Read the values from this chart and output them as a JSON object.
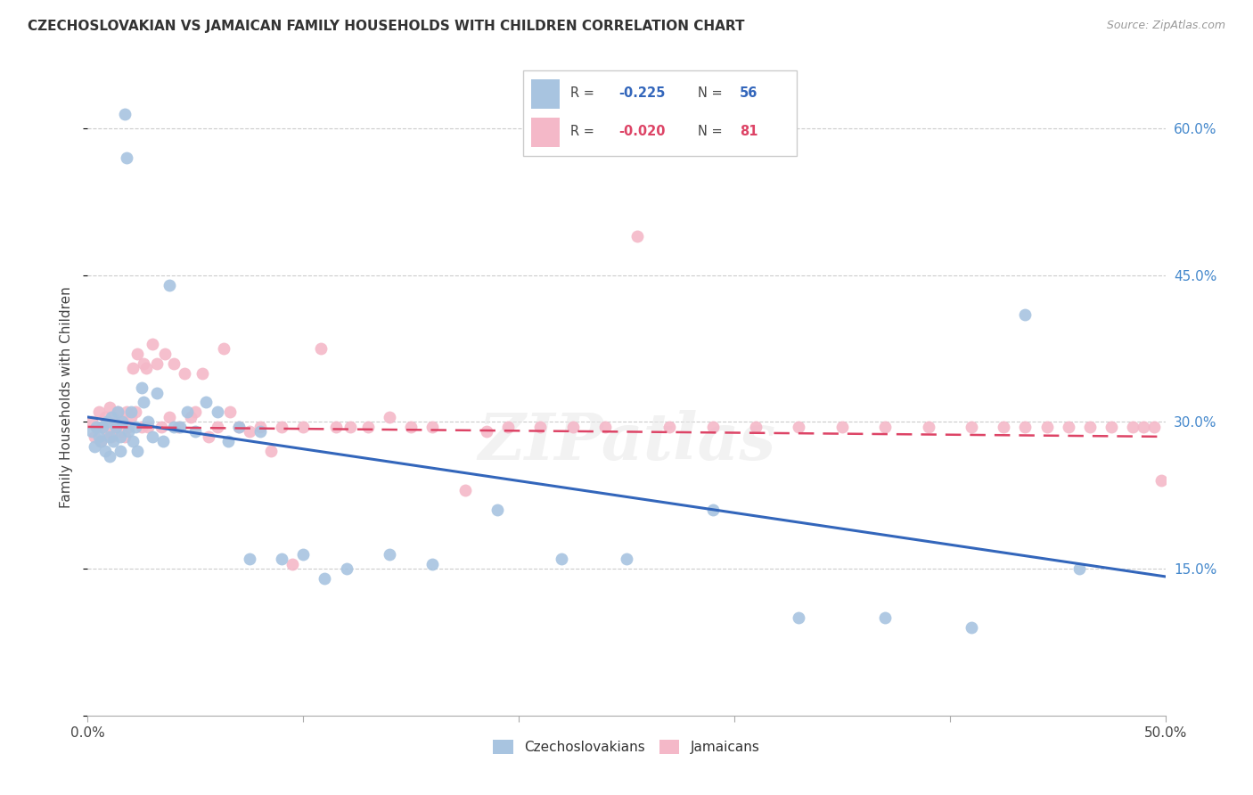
{
  "title": "CZECHOSLOVAKIAN VS JAMAICAN FAMILY HOUSEHOLDS WITH CHILDREN CORRELATION CHART",
  "source": "Source: ZipAtlas.com",
  "ylabel": "Family Households with Children",
  "xlim": [
    0.0,
    0.5
  ],
  "ylim": [
    0.0,
    0.65
  ],
  "xticks": [
    0.0,
    0.1,
    0.2,
    0.3,
    0.4,
    0.5
  ],
  "xticklabels": [
    "0.0%",
    "",
    "",
    "",
    "",
    "50.0%"
  ],
  "yticks_right": [
    0.15,
    0.3,
    0.45,
    0.6
  ],
  "yticklabels_right": [
    "15.0%",
    "30.0%",
    "45.0%",
    "60.0%"
  ],
  "legend_r_blue": "-0.225",
  "legend_n_blue": "56",
  "legend_r_pink": "-0.020",
  "legend_n_pink": "81",
  "legend_label_blue": "Czechoslovakians",
  "legend_label_pink": "Jamaicans",
  "color_blue": "#a8c4e0",
  "color_pink": "#f4b8c8",
  "color_blue_line": "#3366bb",
  "color_pink_line": "#dd4466",
  "color_title": "#333333",
  "color_source": "#999999",
  "color_grid": "#cccccc",
  "color_axis_right": "#4488cc",
  "watermark": "ZIPatlas",
  "blue_x": [
    0.002,
    0.003,
    0.004,
    0.005,
    0.006,
    0.007,
    0.008,
    0.009,
    0.01,
    0.01,
    0.011,
    0.012,
    0.013,
    0.014,
    0.015,
    0.015,
    0.016,
    0.017,
    0.018,
    0.019,
    0.02,
    0.021,
    0.022,
    0.023,
    0.025,
    0.026,
    0.028,
    0.03,
    0.032,
    0.035,
    0.038,
    0.04,
    0.043,
    0.046,
    0.05,
    0.055,
    0.06,
    0.065,
    0.07,
    0.075,
    0.08,
    0.09,
    0.1,
    0.11,
    0.12,
    0.14,
    0.16,
    0.19,
    0.22,
    0.25,
    0.29,
    0.33,
    0.37,
    0.41,
    0.435,
    0.46
  ],
  "blue_y": [
    0.29,
    0.275,
    0.295,
    0.285,
    0.28,
    0.295,
    0.27,
    0.3,
    0.285,
    0.265,
    0.305,
    0.28,
    0.295,
    0.31,
    0.285,
    0.27,
    0.3,
    0.615,
    0.57,
    0.29,
    0.31,
    0.28,
    0.295,
    0.27,
    0.335,
    0.32,
    0.3,
    0.285,
    0.33,
    0.28,
    0.44,
    0.295,
    0.295,
    0.31,
    0.29,
    0.32,
    0.31,
    0.28,
    0.295,
    0.16,
    0.29,
    0.16,
    0.165,
    0.14,
    0.15,
    0.165,
    0.155,
    0.21,
    0.16,
    0.16,
    0.21,
    0.1,
    0.1,
    0.09,
    0.41,
    0.15
  ],
  "pink_x": [
    0.002,
    0.003,
    0.004,
    0.005,
    0.006,
    0.007,
    0.008,
    0.009,
    0.01,
    0.01,
    0.011,
    0.012,
    0.013,
    0.014,
    0.015,
    0.016,
    0.017,
    0.018,
    0.019,
    0.02,
    0.021,
    0.022,
    0.023,
    0.025,
    0.026,
    0.027,
    0.028,
    0.03,
    0.032,
    0.034,
    0.036,
    0.038,
    0.04,
    0.042,
    0.045,
    0.048,
    0.05,
    0.053,
    0.056,
    0.06,
    0.063,
    0.066,
    0.07,
    0.075,
    0.08,
    0.085,
    0.09,
    0.095,
    0.1,
    0.108,
    0.115,
    0.122,
    0.13,
    0.14,
    0.15,
    0.16,
    0.175,
    0.185,
    0.195,
    0.21,
    0.225,
    0.24,
    0.255,
    0.27,
    0.29,
    0.31,
    0.33,
    0.35,
    0.37,
    0.39,
    0.41,
    0.425,
    0.435,
    0.445,
    0.455,
    0.465,
    0.475,
    0.485,
    0.49,
    0.495,
    0.498
  ],
  "pink_y": [
    0.3,
    0.285,
    0.295,
    0.31,
    0.28,
    0.295,
    0.305,
    0.29,
    0.315,
    0.295,
    0.285,
    0.305,
    0.295,
    0.31,
    0.29,
    0.3,
    0.285,
    0.31,
    0.295,
    0.305,
    0.355,
    0.31,
    0.37,
    0.295,
    0.36,
    0.355,
    0.295,
    0.38,
    0.36,
    0.295,
    0.37,
    0.305,
    0.36,
    0.295,
    0.35,
    0.305,
    0.31,
    0.35,
    0.285,
    0.295,
    0.375,
    0.31,
    0.295,
    0.29,
    0.295,
    0.27,
    0.295,
    0.155,
    0.295,
    0.375,
    0.295,
    0.295,
    0.295,
    0.305,
    0.295,
    0.295,
    0.23,
    0.29,
    0.295,
    0.295,
    0.295,
    0.295,
    0.49,
    0.295,
    0.295,
    0.295,
    0.295,
    0.295,
    0.295,
    0.295,
    0.295,
    0.295,
    0.295,
    0.295,
    0.295,
    0.295,
    0.295,
    0.295,
    0.295,
    0.295,
    0.24
  ]
}
